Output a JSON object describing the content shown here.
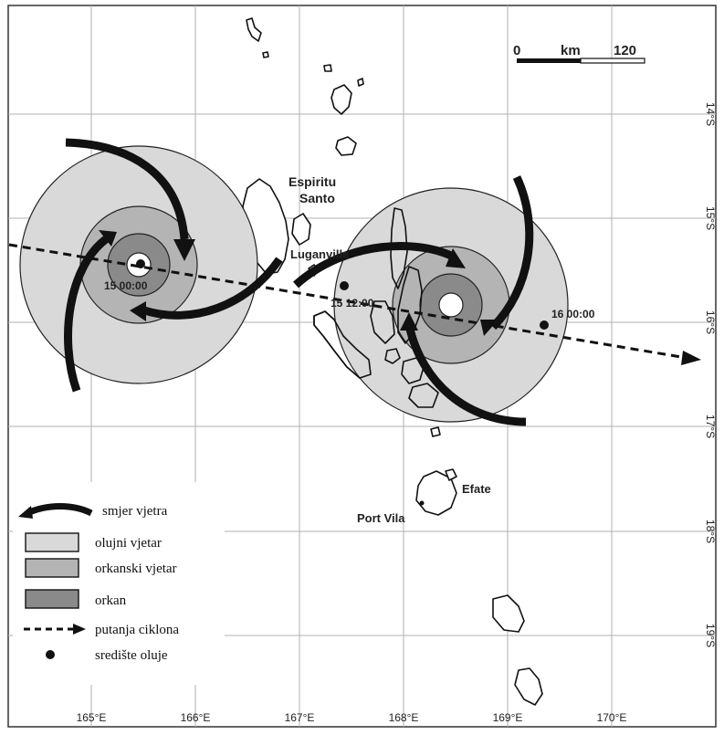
{
  "scale_bar": {
    "start": "0",
    "unit": "km",
    "end": "120"
  },
  "lon_ticks": [
    "165°E",
    "166°E",
    "167°E",
    "168°E",
    "169°E",
    "170°E"
  ],
  "lat_ticks": [
    "14°S",
    "15°S",
    "16°S",
    "17°S",
    "18°S",
    "19°S"
  ],
  "places": {
    "espiritu_line1": "Espiritu",
    "espiritu_line2": "Santo",
    "luganville": "Luganville",
    "efate": "Efate",
    "port_vila": "Port Vila"
  },
  "track_points": [
    {
      "time": "15 00:00",
      "lon": 165.5,
      "lat": 15.45
    },
    {
      "time": "15 12:00",
      "lon": 167.55,
      "lat": 15.65
    },
    {
      "time": "16 00:00",
      "lon": 169.6,
      "lat": 16.0
    }
  ],
  "legend": {
    "wind_direction": "smjer vjetra",
    "gale": "olujni vjetar",
    "storm": "orkanski vjetar",
    "hurricane": "orkan",
    "track": "putanja ciklona",
    "center": "središte oluje"
  },
  "colors": {
    "gale": "#d9d9d9",
    "storm": "#b4b4b4",
    "hurricane": "#8a8a8a",
    "grid": "#b0b0b0",
    "ink": "#111111"
  }
}
